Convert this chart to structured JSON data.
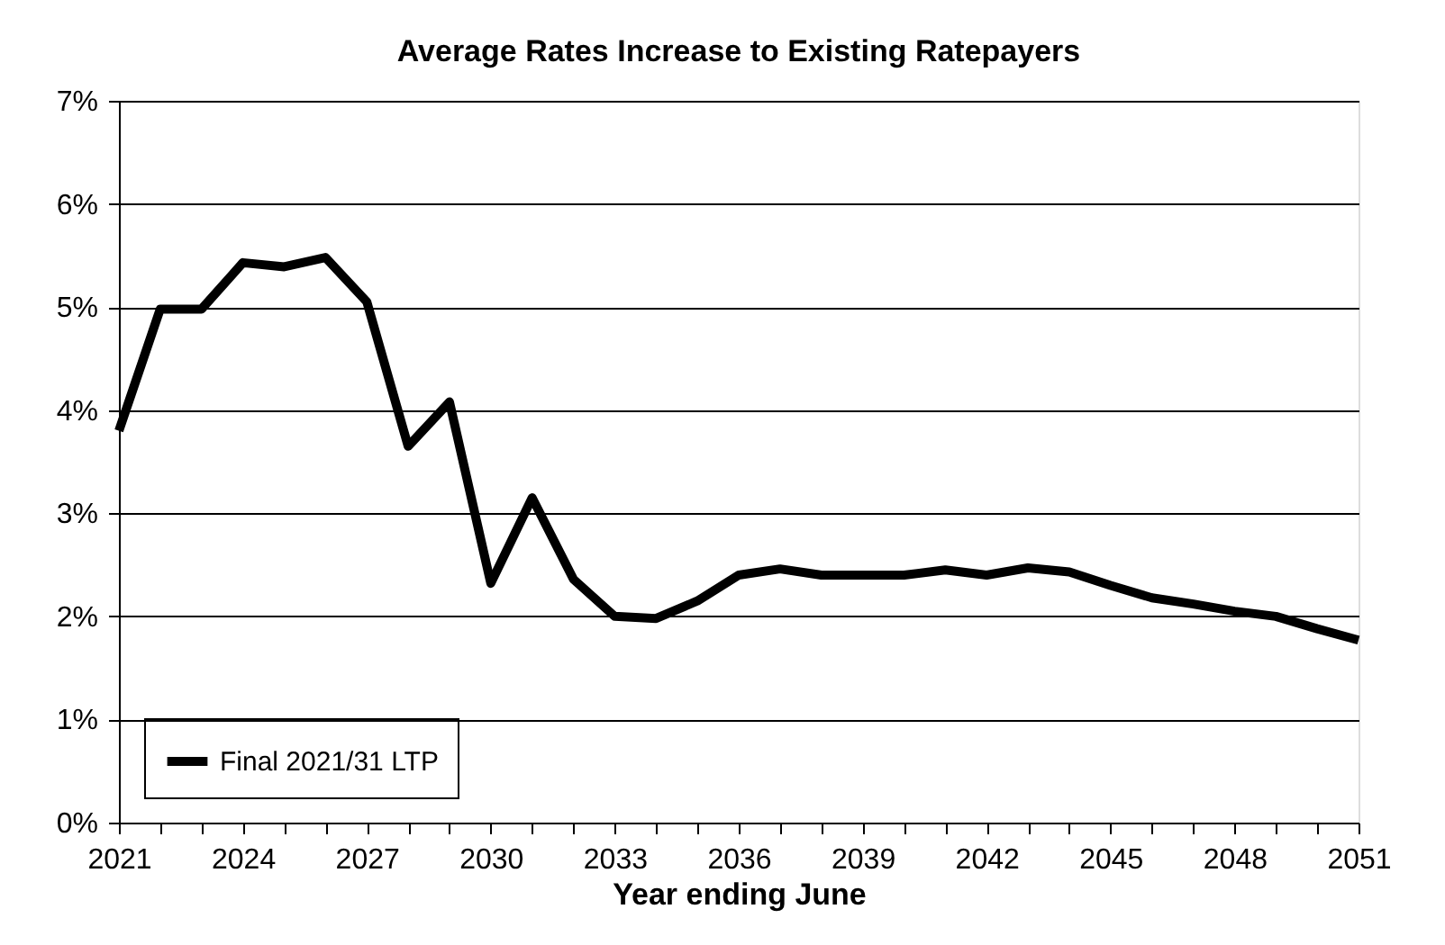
{
  "chart_data": {
    "type": "line",
    "title": "Average Rates Increase to Existing Ratepayers",
    "xlabel": "Year ending June",
    "x": [
      2021,
      2022,
      2023,
      2024,
      2025,
      2026,
      2027,
      2028,
      2029,
      2030,
      2031,
      2032,
      2033,
      2034,
      2035,
      2036,
      2037,
      2038,
      2039,
      2040,
      2041,
      2042,
      2043,
      2044,
      2045,
      2046,
      2047,
      2048,
      2049,
      2050,
      2051
    ],
    "series": [
      {
        "name": "Final 2021/31 LTP",
        "color": "#000000",
        "values": [
          3.8,
          4.98,
          4.98,
          5.43,
          5.39,
          5.48,
          5.05,
          3.65,
          4.08,
          2.32,
          3.15,
          2.36,
          2.0,
          1.98,
          2.15,
          2.4,
          2.46,
          2.4,
          2.4,
          2.4,
          2.45,
          2.4,
          2.47,
          2.43,
          2.3,
          2.18,
          2.12,
          2.05,
          2.0,
          1.88,
          1.77
        ]
      }
    ],
    "xlim": [
      2021,
      2051
    ],
    "xticks": [
      2021,
      {
        "value": 2022,
        "label": null
      },
      {
        "value": 2023,
        "label": null
      },
      2024,
      {
        "value": 2025,
        "label": null
      },
      {
        "value": 2026,
        "label": null
      },
      2027,
      {
        "value": 2028,
        "label": null
      },
      {
        "value": 2029,
        "label": null
      },
      2030,
      {
        "value": 2031,
        "label": null
      },
      {
        "value": 2032,
        "label": null
      },
      2033,
      {
        "value": 2034,
        "label": null
      },
      {
        "value": 2035,
        "label": null
      },
      2036,
      {
        "value": 2037,
        "label": null
      },
      {
        "value": 2038,
        "label": null
      },
      2039,
      {
        "value": 2040,
        "label": null
      },
      {
        "value": 2041,
        "label": null
      },
      2042,
      {
        "value": 2043,
        "label": null
      },
      {
        "value": 2044,
        "label": null
      },
      2045,
      {
        "value": 2046,
        "label": null
      },
      {
        "value": 2047,
        "label": null
      },
      2048,
      {
        "value": 2049,
        "label": null
      },
      {
        "value": 2050,
        "label": null
      },
      2051
    ],
    "ylim": [
      0,
      7
    ],
    "yticks": [
      {
        "value": 0,
        "label": "0%"
      },
      {
        "value": 1,
        "label": "1%"
      },
      {
        "value": 2,
        "label": "2%"
      },
      {
        "value": 3,
        "label": "3%"
      },
      {
        "value": 4,
        "label": "4%"
      },
      {
        "value": 5,
        "label": "5%"
      },
      {
        "value": 6,
        "label": "6%"
      },
      {
        "value": 7,
        "label": "7%"
      }
    ],
    "grid": "y",
    "legend": "bottom left",
    "marker": "none",
    "line_style": "solid"
  }
}
